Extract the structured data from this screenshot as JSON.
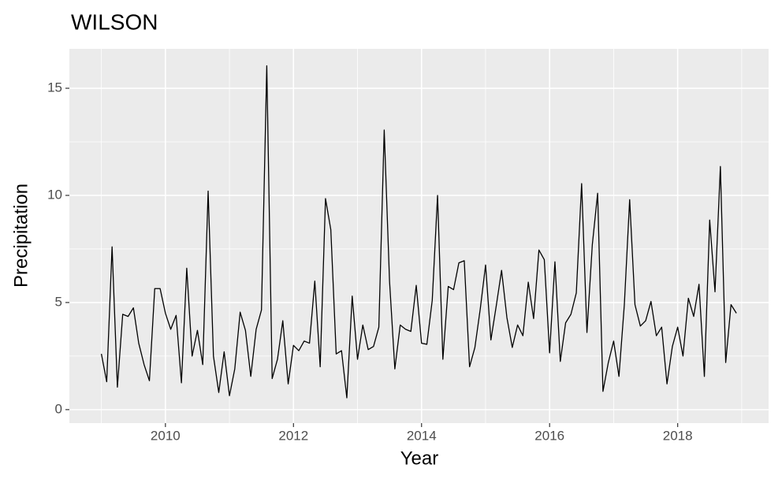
{
  "chart_data": {
    "type": "line",
    "title": "WILSON",
    "x_label": "Year",
    "y_label": "Precipitation",
    "x": [
      2009,
      2009.083,
      2009.167,
      2009.25,
      2009.333,
      2009.417,
      2009.5,
      2009.583,
      2009.667,
      2009.75,
      2009.833,
      2009.917,
      2010,
      2010.083,
      2010.167,
      2010.25,
      2010.333,
      2010.417,
      2010.5,
      2010.583,
      2010.667,
      2010.75,
      2010.833,
      2010.917,
      2011,
      2011.083,
      2011.167,
      2011.25,
      2011.333,
      2011.417,
      2011.5,
      2011.583,
      2011.667,
      2011.75,
      2011.833,
      2011.917,
      2012,
      2012.083,
      2012.167,
      2012.25,
      2012.333,
      2012.417,
      2012.5,
      2012.583,
      2012.667,
      2012.75,
      2012.833,
      2012.917,
      2013,
      2013.083,
      2013.167,
      2013.25,
      2013.333,
      2013.417,
      2013.5,
      2013.583,
      2013.667,
      2013.75,
      2013.833,
      2013.917,
      2014,
      2014.083,
      2014.167,
      2014.25,
      2014.333,
      2014.417,
      2014.5,
      2014.583,
      2014.667,
      2014.75,
      2014.833,
      2014.917,
      2015,
      2015.083,
      2015.167,
      2015.25,
      2015.333,
      2015.417,
      2015.5,
      2015.583,
      2015.667,
      2015.75,
      2015.833,
      2015.917,
      2016,
      2016.083,
      2016.167,
      2016.25,
      2016.333,
      2016.417,
      2016.5,
      2016.583,
      2016.667,
      2016.75,
      2016.833,
      2016.917,
      2017,
      2017.083,
      2017.167,
      2017.25,
      2017.333,
      2017.417,
      2017.5,
      2017.583,
      2017.667,
      2017.75,
      2017.833,
      2017.917,
      2018,
      2018.083,
      2018.167,
      2018.25,
      2018.333,
      2018.417,
      2018.5,
      2018.583,
      2018.667,
      2018.75,
      2018.833,
      2018.917
    ],
    "values": [
      2.6,
      1.3,
      7.6,
      1.05,
      4.45,
      4.35,
      4.75,
      3.1,
      2.1,
      1.35,
      5.65,
      5.65,
      4.5,
      3.75,
      4.4,
      1.25,
      6.6,
      2.5,
      3.7,
      2.1,
      10.2,
      2.5,
      0.8,
      2.7,
      0.65,
      1.9,
      4.55,
      3.7,
      1.55,
      3.75,
      4.65,
      16.05,
      1.45,
      2.35,
      4.15,
      1.2,
      3.0,
      2.75,
      3.2,
      3.1,
      6.0,
      2.0,
      9.85,
      8.4,
      2.6,
      2.75,
      0.55,
      5.3,
      2.35,
      3.95,
      2.8,
      2.95,
      3.85,
      13.05,
      6.0,
      1.9,
      3.95,
      3.75,
      3.65,
      5.8,
      3.1,
      3.05,
      5.1,
      10.0,
      2.35,
      5.75,
      5.6,
      6.85,
      6.95,
      2.0,
      2.9,
      4.7,
      6.75,
      3.25,
      4.85,
      6.5,
      4.3,
      2.9,
      3.95,
      3.45,
      5.95,
      4.25,
      7.45,
      7.0,
      2.65,
      6.9,
      2.25,
      4.05,
      4.45,
      5.45,
      10.55,
      3.6,
      7.7,
      10.1,
      0.85,
      2.2,
      3.2,
      1.55,
      4.9,
      9.8,
      4.9,
      3.9,
      4.15,
      5.05,
      3.45,
      3.85,
      1.2,
      2.95,
      3.85,
      2.5,
      5.2,
      4.35,
      5.85,
      1.55,
      8.85,
      5.5,
      11.35,
      2.2,
      4.9,
      4.5
    ],
    "color": "#000000",
    "xlim": [
      2008.5,
      2019.42
    ],
    "xticks": [
      2010,
      2012,
      2014,
      2016,
      2018
    ],
    "ylim": [
      -0.63,
      16.84
    ],
    "yticks": [
      0,
      5,
      10,
      15
    ],
    "grid": true
  }
}
